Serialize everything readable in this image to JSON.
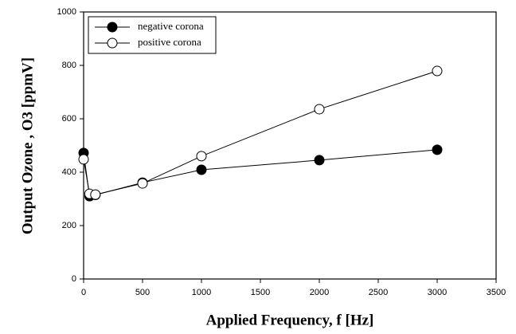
{
  "chart_data": {
    "type": "line",
    "x_label": "Applied Frequency, f [Hz]",
    "y_label": "Output Ozone , O3 [ppmV]",
    "x": [
      0,
      50,
      100,
      500,
      1000,
      2000,
      3000
    ],
    "series": [
      {
        "name": "negative corona",
        "color": "#000000",
        "marker": "filled-circle",
        "values": [
          472,
          310,
          315,
          361,
          409,
          445,
          484
        ]
      },
      {
        "name": "positive corona",
        "color": "#000000",
        "marker": "open-circle",
        "values": [
          448,
          319,
          316,
          358,
          460,
          636,
          779
        ]
      }
    ],
    "xlim": [
      0,
      3500
    ],
    "xticks": [
      0,
      500,
      1000,
      1500,
      2000,
      2500,
      3000,
      3500
    ],
    "ylim": [
      0,
      1000
    ],
    "yticks": [
      0,
      200,
      400,
      600,
      800,
      1000
    ],
    "legend": "upper left",
    "grid": false
  }
}
